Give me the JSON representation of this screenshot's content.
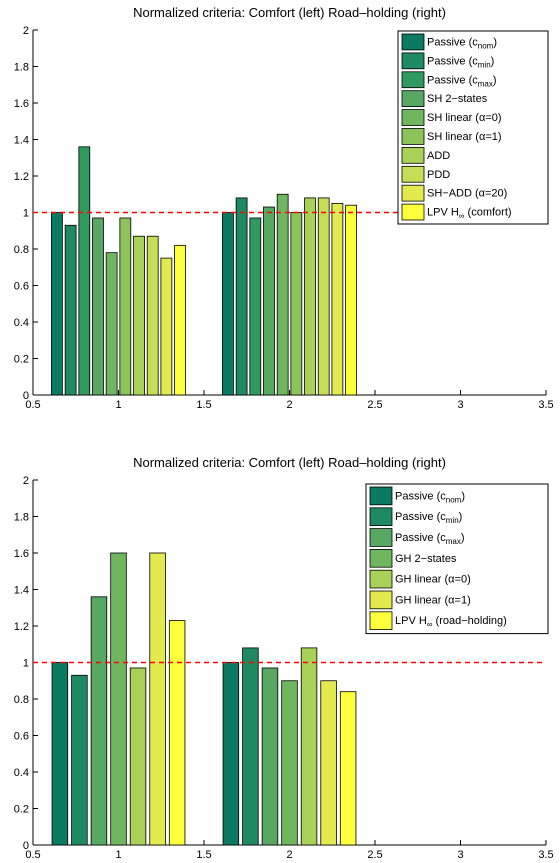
{
  "colors": {
    "c1": "#0b7a63",
    "c2": "#1f8a62",
    "c3": "#2f9a5e",
    "c4": "#56a862",
    "c5": "#6fb65f",
    "c6": "#8cc45a",
    "c7": "#a8d158",
    "c8": "#c6de55",
    "c9": "#e3ea4e",
    "c10": "#ffff3c",
    "reference_line": "#ff0000"
  },
  "chart_data": [
    {
      "type": "bar",
      "title": "Normalized criteria: Comfort (left) Road–holding (right)",
      "xlabel": "",
      "ylabel": "",
      "xlim": [
        0.5,
        3.5
      ],
      "ylim": [
        0,
        2
      ],
      "xticks": [
        "0.5",
        "1",
        "1.5",
        "2",
        "2.5",
        "3",
        "3.5"
      ],
      "yticks": [
        "0",
        "0.2",
        "0.4",
        "0.6",
        "0.8",
        "1",
        "1.2",
        "1.4",
        "1.6",
        "1.8",
        "2"
      ],
      "reference_line": 1,
      "grid": false,
      "legend_position": "top-right",
      "groups": [
        1,
        2
      ],
      "series": [
        {
          "name": "Passive (c",
          "sub": "nom",
          "post": ")",
          "color_key": "c1",
          "values": [
            1.0,
            1.0
          ]
        },
        {
          "name": "Passive (c",
          "sub": "min",
          "post": ")",
          "color_key": "c2",
          "values": [
            0.93,
            1.08
          ]
        },
        {
          "name": "Passive (c",
          "sub": "max",
          "post": ")",
          "color_key": "c3",
          "values": [
            1.36,
            0.97
          ]
        },
        {
          "name": "SH 2−states",
          "color_key": "c4",
          "values": [
            0.97,
            1.03
          ]
        },
        {
          "name": "SH linear (α=0)",
          "color_key": "c5",
          "values": [
            0.78,
            1.1
          ]
        },
        {
          "name": "SH linear (α=1)",
          "color_key": "c6",
          "values": [
            0.97,
            1.0
          ]
        },
        {
          "name": "ADD",
          "color_key": "c7",
          "values": [
            0.87,
            1.08
          ]
        },
        {
          "name": "PDD",
          "color_key": "c8",
          "values": [
            0.87,
            1.08
          ]
        },
        {
          "name": "SH−ADD (α=20)",
          "color_key": "c9",
          "values": [
            0.75,
            1.05
          ]
        },
        {
          "name": "LPV H",
          "sub": "∞",
          "post": " (comfort)",
          "color_key": "c10",
          "values": [
            0.82,
            1.04
          ]
        }
      ]
    },
    {
      "type": "bar",
      "title": "Normalized criteria: Comfort (left) Road–holding (right)",
      "xlabel": "",
      "ylabel": "",
      "xlim": [
        0.5,
        3.5
      ],
      "ylim": [
        0,
        2
      ],
      "xticks": [
        "0.5",
        "1",
        "1.5",
        "2",
        "2.5",
        "3",
        "3.5"
      ],
      "yticks": [
        "0",
        "0.2",
        "0.4",
        "0.6",
        "0.8",
        "1",
        "1.2",
        "1.4",
        "1.6",
        "1.8",
        "2"
      ],
      "reference_line": 1,
      "grid": false,
      "legend_position": "top-right",
      "groups": [
        1,
        2
      ],
      "series": [
        {
          "name": "Passive (c",
          "sub": "nom",
          "post": ")",
          "color_key": "c1",
          "values": [
            1.0,
            1.0
          ]
        },
        {
          "name": "Passive (c",
          "sub": "min",
          "post": ")",
          "color_key": "c2",
          "values": [
            0.93,
            1.08
          ]
        },
        {
          "name": "Passive (c",
          "sub": "max",
          "post": ")",
          "color_key": "c4",
          "values": [
            1.36,
            0.97
          ]
        },
        {
          "name": "GH 2−states",
          "color_key": "c5",
          "values": [
            1.6,
            0.9
          ]
        },
        {
          "name": "GH linear (α=0)",
          "color_key": "c7",
          "values": [
            0.97,
            1.08
          ]
        },
        {
          "name": "GH linear (α=1)",
          "color_key": "c9",
          "values": [
            1.6,
            0.9
          ]
        },
        {
          "name": "LPV H",
          "sub": "∞",
          "post": " (road−holding)",
          "color_key": "c10",
          "values": [
            1.23,
            0.84
          ]
        }
      ]
    }
  ]
}
